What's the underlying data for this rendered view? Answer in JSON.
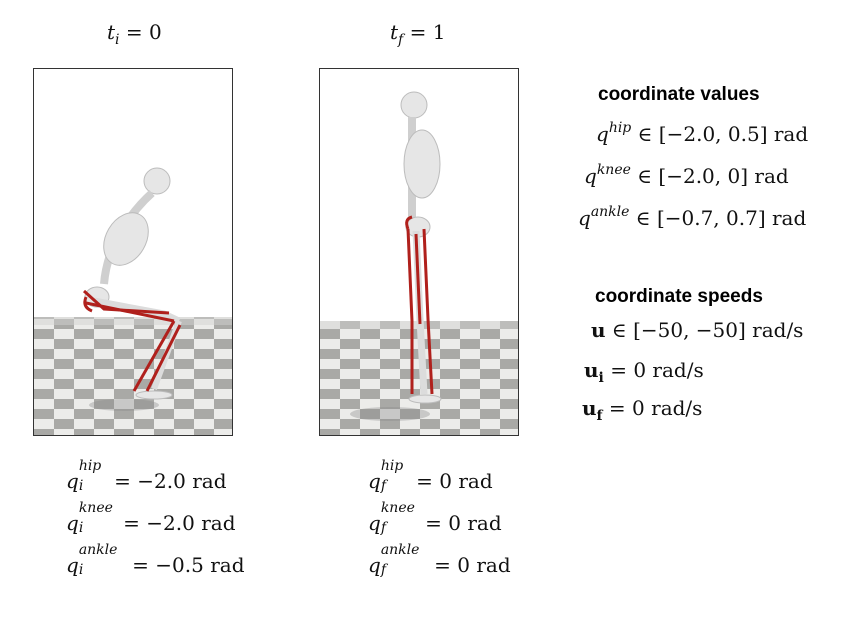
{
  "panels": {
    "initial": {
      "time_label": "t_i = 0"
    },
    "final": {
      "time_label": "t_f = 1"
    }
  },
  "initial_values": [
    {
      "sym": "q",
      "sub": "i",
      "sup": "hip",
      "rhs": "= −2.0 rad"
    },
    {
      "sym": "q",
      "sub": "i",
      "sup": "knee",
      "rhs": "= −2.0 rad"
    },
    {
      "sym": "q",
      "sub": "i",
      "sup": "ankle",
      "rhs": "= −0.5 rad"
    }
  ],
  "final_values": [
    {
      "sym": "q",
      "sub": "f",
      "sup": "hip",
      "rhs": "= 0 rad"
    },
    {
      "sym": "q",
      "sub": "f",
      "sup": "knee",
      "rhs": "= 0 rad"
    },
    {
      "sym": "q",
      "sub": "f",
      "sup": "ankle",
      "rhs": "= 0 rad"
    }
  ],
  "coordinate_values": {
    "heading": "coordinate values",
    "rows": [
      {
        "sym": "q",
        "sup": "hip",
        "rhs": "∈ [−2.0, 0.5] rad"
      },
      {
        "sym": "q",
        "sup": "knee",
        "rhs": "∈ [−2.0, 0] rad"
      },
      {
        "sym": "q",
        "sup": "ankle",
        "rhs": "∈ [−0.7, 0.7] rad"
      }
    ]
  },
  "coordinate_speeds": {
    "heading": "coordinate speeds",
    "rows": [
      {
        "sym": "u",
        "sub": "",
        "rhs": "∈ [−50, −50] rad/s"
      },
      {
        "sym": "u",
        "sub": "i",
        "rhs": "= 0 rad/s"
      },
      {
        "sym": "u",
        "sub": "f",
        "rhs": "= 0 rad/s"
      }
    ]
  },
  "colors": {
    "muscle": "#b0201c",
    "bone": "#e6e6e6",
    "floor_dark": "#a9a9a6",
    "floor_light": "#ececea"
  }
}
